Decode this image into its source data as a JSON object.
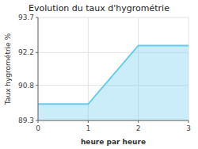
{
  "chart_data": {
    "type": "area",
    "title": "Evolution du taux d'hygrométrie",
    "xlabel": "heure par heure",
    "ylabel": "Taux hygrométrie %",
    "x": [
      0,
      1,
      2,
      3
    ],
    "y": [
      90.0,
      90.0,
      92.5,
      92.5
    ],
    "xlim": [
      0,
      3
    ],
    "ylim": [
      89.3,
      93.7
    ],
    "xticks": [
      0,
      1,
      2,
      3
    ],
    "yticks": [
      89.3,
      90.8,
      92.2,
      93.7
    ],
    "color": "#66ccee",
    "grid": true
  }
}
